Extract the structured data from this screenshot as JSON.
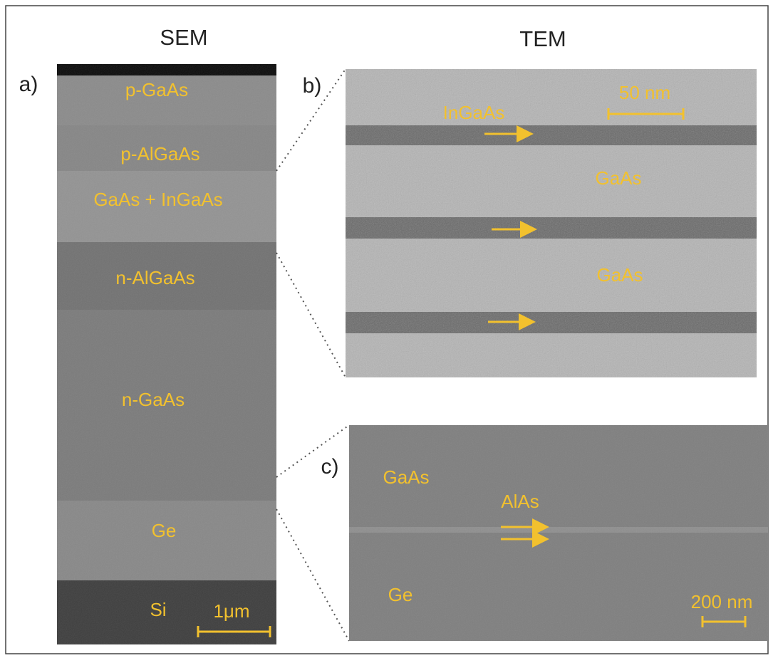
{
  "headers": {
    "left": "SEM",
    "right": "TEM"
  },
  "panels": [
    {
      "label": "a)",
      "layers": [
        "p-GaAs",
        "p-AlGaAs",
        "GaAs + InGaAs",
        "n-AlGaAs",
        "n-GaAs",
        "Ge",
        "Si"
      ],
      "scale_bar": "1μm"
    },
    {
      "label": "b)",
      "annotations": [
        "InGaAs",
        "GaAs",
        "GaAs"
      ],
      "scale_bar": "50 nm"
    },
    {
      "label": "c)",
      "annotations": [
        "GaAs",
        "AlAs",
        "Ge"
      ],
      "scale_bar": "200 nm"
    }
  ]
}
